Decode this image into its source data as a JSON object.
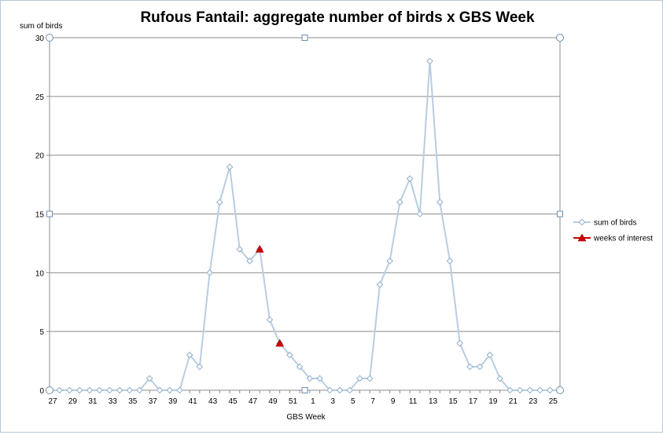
{
  "chart_data": {
    "type": "line",
    "title": "Rufous Fantail: aggregate number of birds x GBS Week",
    "xlabel": "GBS Week",
    "ylabel": "sum of birds",
    "ylim": [
      0,
      30
    ],
    "yticks": [
      0,
      5,
      10,
      15,
      20,
      25,
      30
    ],
    "grid": "horizontal",
    "legend_position": "right",
    "x": [
      "27",
      "28",
      "29",
      "30",
      "31",
      "32",
      "33",
      "34",
      "35",
      "36",
      "37",
      "38",
      "39",
      "40",
      "41",
      "42",
      "43",
      "44",
      "45",
      "46",
      "47",
      "48",
      "49",
      "50",
      "51",
      "52",
      "1",
      "2",
      "3",
      "4",
      "5",
      "6",
      "7",
      "8",
      "9",
      "10",
      "11",
      "12",
      "13",
      "14",
      "15",
      "16",
      "17",
      "18",
      "19",
      "20",
      "21",
      "22",
      "23",
      "24",
      "25",
      "26"
    ],
    "x_tick_labels": [
      "27",
      "29",
      "31",
      "33",
      "35",
      "37",
      "39",
      "41",
      "43",
      "45",
      "47",
      "49",
      "51",
      "1",
      "3",
      "5",
      "7",
      "9",
      "11",
      "13",
      "15",
      "17",
      "19",
      "21",
      "23",
      "25"
    ],
    "series": [
      {
        "name": "sum of birds",
        "color": "#b9cde0",
        "marker": "diamond",
        "values": [
          0,
          0,
          0,
          0,
          0,
          0,
          0,
          0,
          0,
          0,
          1,
          0,
          0,
          0,
          3,
          2,
          10,
          16,
          19,
          12,
          11,
          12,
          6,
          4,
          3,
          2,
          1,
          1,
          0,
          0,
          0,
          1,
          1,
          9,
          11,
          16,
          18,
          15,
          28,
          16,
          11,
          4,
          2,
          2,
          3,
          1,
          0,
          0,
          0,
          0,
          0,
          0
        ]
      },
      {
        "name": "weeks of interest",
        "color": "#cc0000",
        "marker": "triangle",
        "points": [
          {
            "x": "48",
            "y": 12
          },
          {
            "x": "50",
            "y": 4
          }
        ]
      }
    ]
  }
}
